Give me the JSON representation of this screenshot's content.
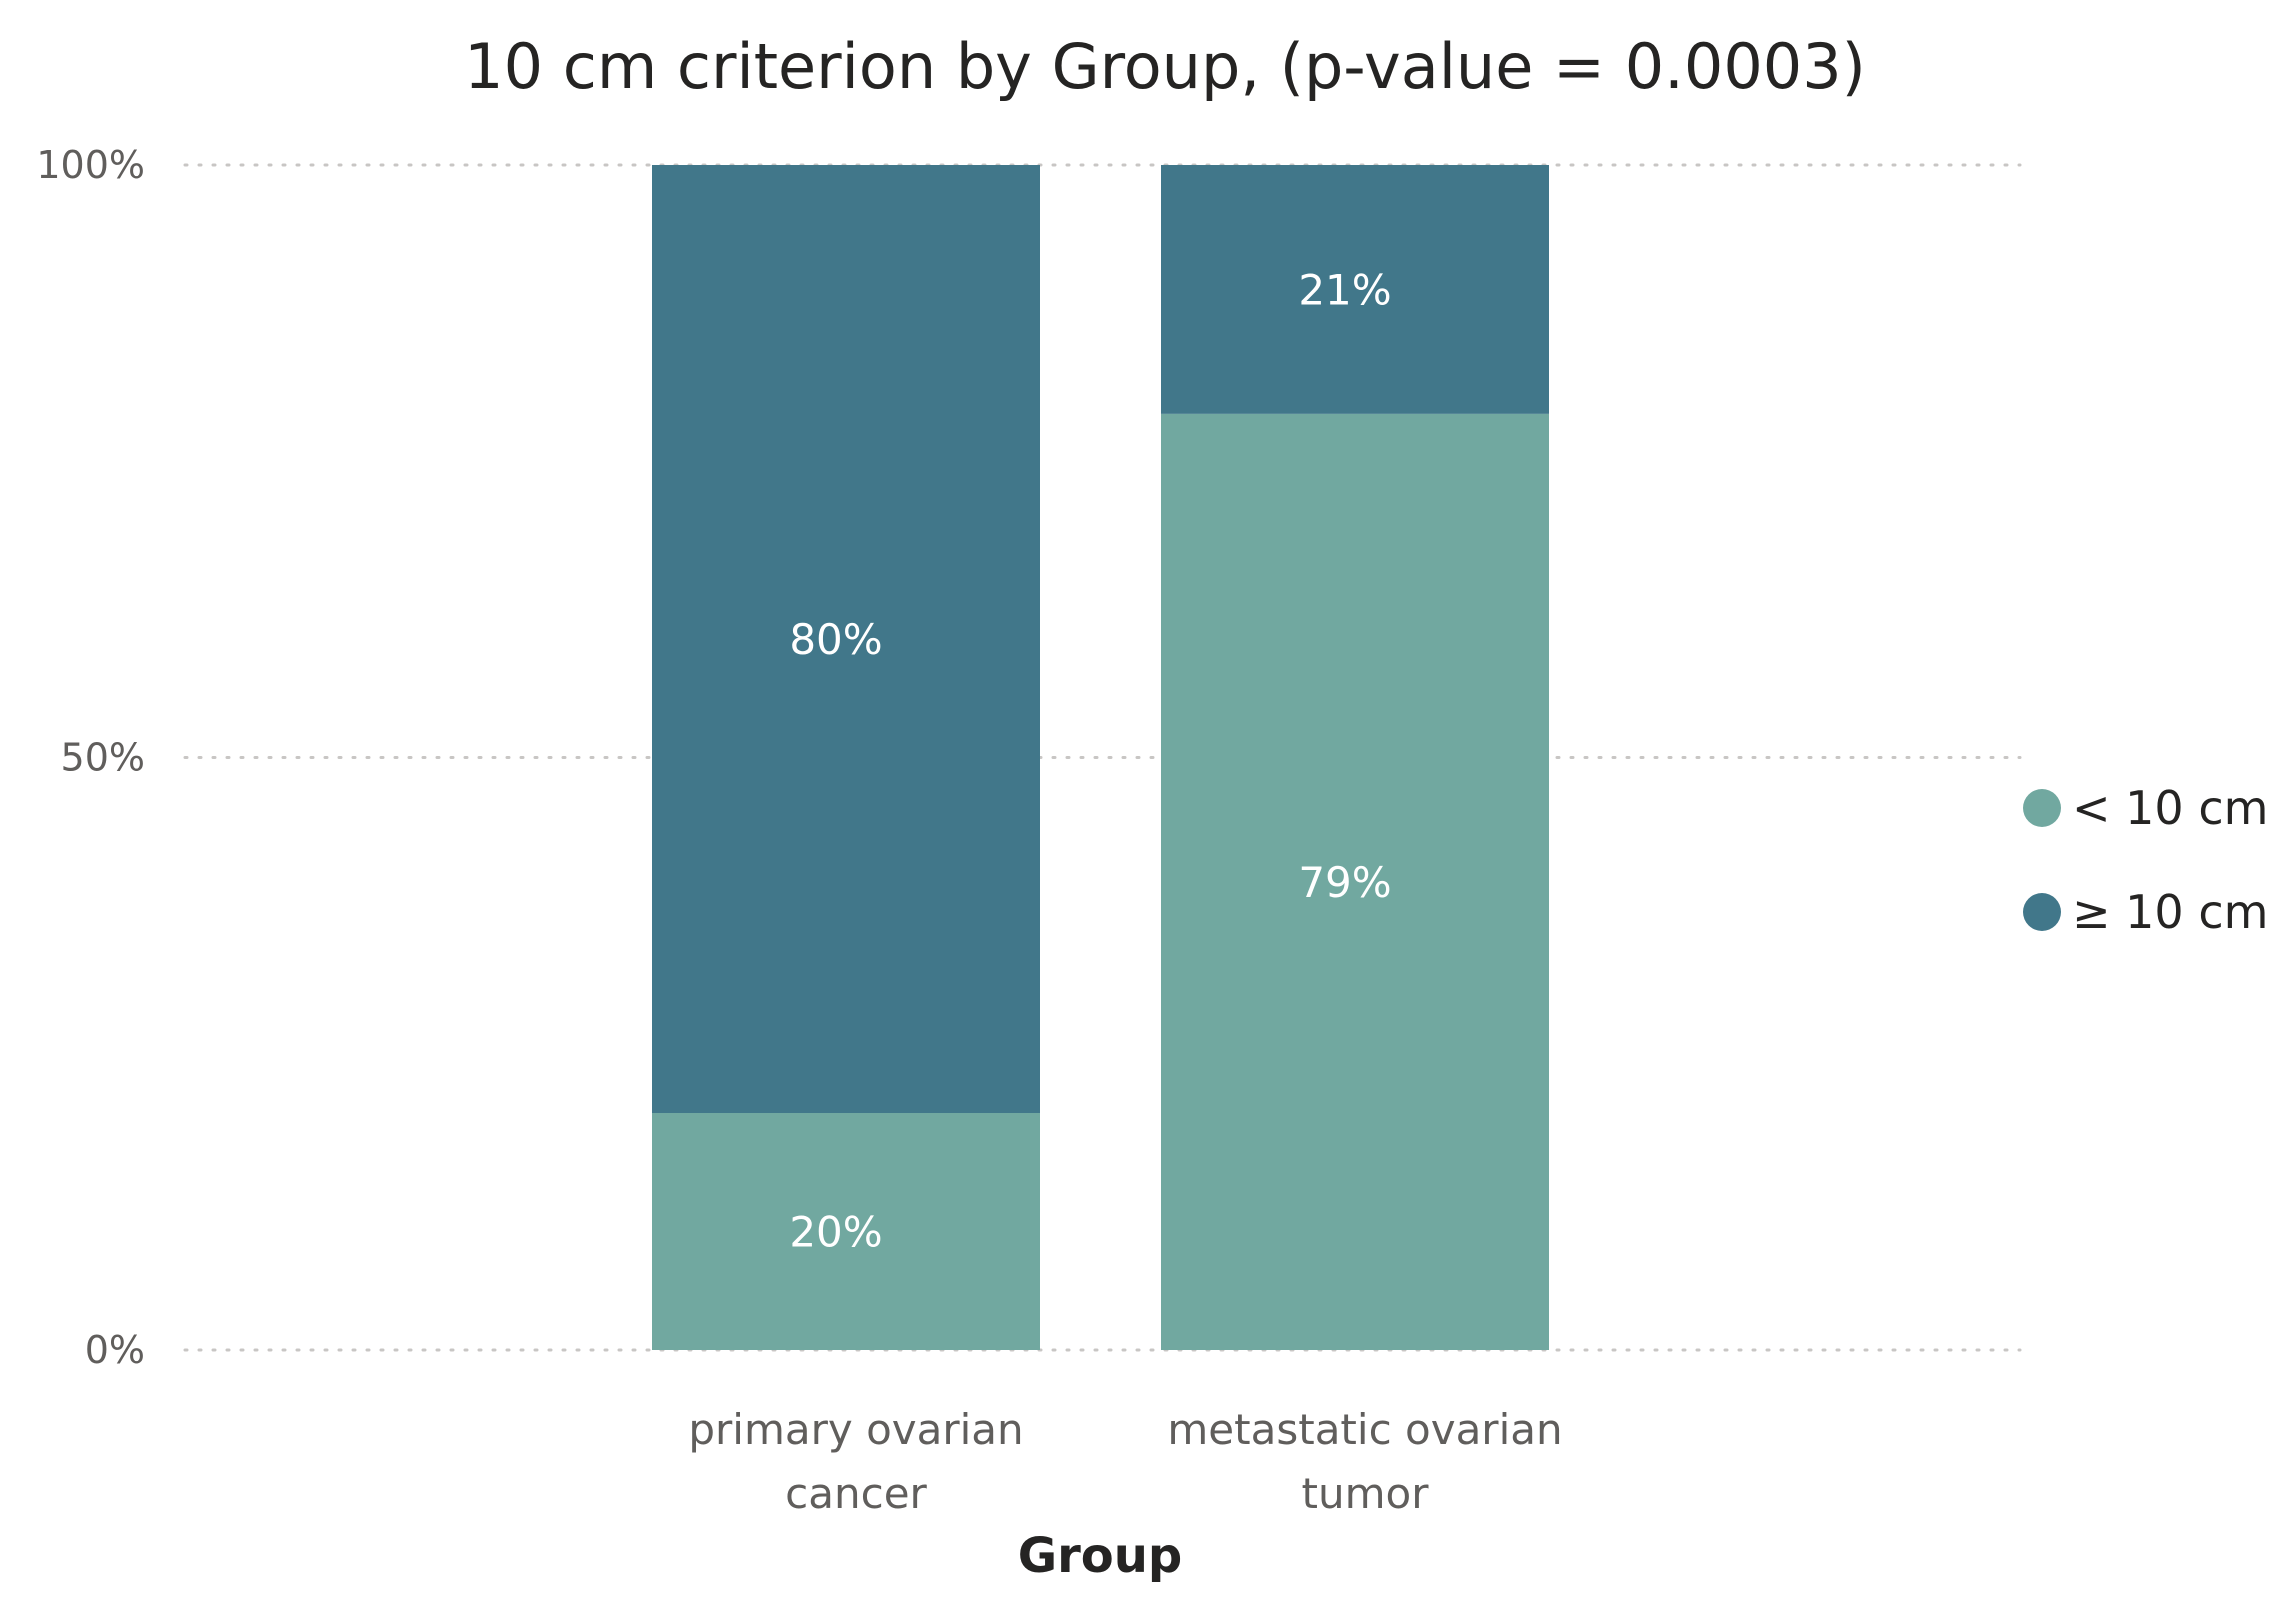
{
  "chart_data": {
    "type": "bar",
    "stacked": true,
    "normalized": true,
    "title": "10 cm criterion by Group, (p-value = 0.0003)",
    "xlabel": "Group",
    "ylabel": "",
    "categories": [
      [
        "primary ovarian",
        "cancer"
      ],
      [
        "metastatic ovarian",
        "tumor"
      ]
    ],
    "series": [
      {
        "name": "< 10 cm",
        "color": "#71a8a0",
        "values": [
          20,
          79
        ],
        "labels": [
          "20%",
          "79%"
        ]
      },
      {
        "name": "≥ 10 cm",
        "color": "#41778a",
        "values": [
          80,
          21
        ],
        "labels": [
          "80%",
          "21%"
        ]
      }
    ],
    "ylim": [
      0,
      100
    ],
    "yticks": [
      {
        "value": 0,
        "label": "0%"
      },
      {
        "value": 50,
        "label": "50%"
      },
      {
        "value": 100,
        "label": "100%"
      }
    ],
    "grid": true,
    "legend_position": "right"
  }
}
